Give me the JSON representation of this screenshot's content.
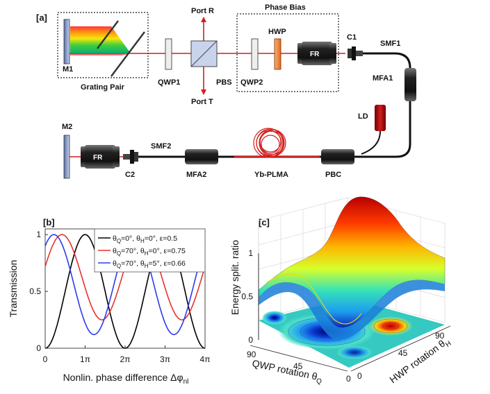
{
  "panel_a": {
    "tag": "[a]",
    "labels": {
      "port_r": "Port R",
      "port_t": "Port T",
      "pbs": "PBS",
      "phase_bias": "Phase Bias",
      "hwp": "HWP",
      "qwp2": "QWP2",
      "fr": "FR",
      "c1": "C1",
      "smf1": "SMF1",
      "mfa1": "MFA1",
      "ld": "LD",
      "m1": "M1",
      "grating_pair": "Grating Pair",
      "qwp1": "QWP1",
      "m2": "M2",
      "fr2": "FR",
      "c2": "C2",
      "smf2": "SMF2",
      "mfa2": "MFA2",
      "yb_plma": "Yb-PLMA",
      "pbc": "PBC"
    }
  },
  "panel_b": {
    "tag": "[b]",
    "chart_data": {
      "type": "line",
      "ylabel": "Transmission",
      "xlabel": "Nonlin. phase difference Δφnl",
      "xticks": [
        "0",
        "1π",
        "2π",
        "3π",
        "4π"
      ],
      "yticks": [
        "0",
        "0.5",
        "1"
      ],
      "xlim": [
        0,
        4
      ],
      "ylim": [
        0,
        1.05
      ],
      "x_unit": "π",
      "legend_position": "top-right",
      "series": [
        {
          "name": "θQ=0°, θH=0°, ε=0.5",
          "color": "#000000",
          "min": 0.0,
          "max": 1.0,
          "peak_at": 1.0
        },
        {
          "name": "θQ=70°, θH=0°, ε=0.75",
          "color": "#e8312f",
          "min": 0.25,
          "max": 1.0,
          "peak_at": 0.42
        },
        {
          "name": "θQ=70°, θH=5°, ε=0.66",
          "color": "#2a3bf0",
          "min": 0.12,
          "max": 1.0,
          "peak_at": 0.22
        }
      ]
    }
  },
  "panel_c": {
    "tag": "[c]",
    "chart_data": {
      "type": "heatmap",
      "zlabel": "Energy split. ratio",
      "xlabel": "QWP rotation θQ",
      "ylabel": "HWP rotation θH",
      "zticks": [
        "0",
        "0.5",
        "1"
      ],
      "xticks": [
        "90",
        "45",
        "0"
      ],
      "yticks": [
        "0",
        "45",
        "90"
      ],
      "zlim": [
        0,
        1
      ],
      "colormap": "jet"
    }
  }
}
